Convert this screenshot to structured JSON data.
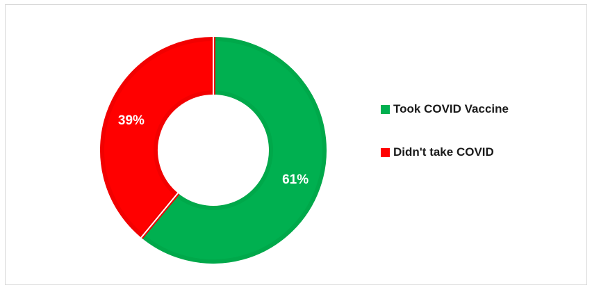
{
  "chart_data": {
    "type": "pie",
    "variant": "donut",
    "title": "",
    "categories": [
      "Took COVID Vaccine",
      "Didn't take COVID"
    ],
    "values": [
      61,
      39
    ],
    "labels": [
      "61%",
      "39%"
    ],
    "colors": [
      "#00b050",
      "#ff0000"
    ],
    "border_colors": [
      "#00a84a",
      "#f20000"
    ],
    "legend_position": "right"
  }
}
